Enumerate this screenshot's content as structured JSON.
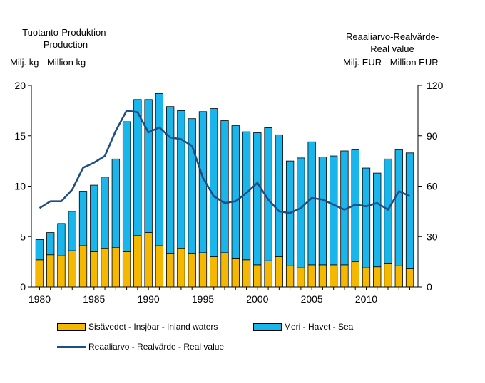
{
  "chart_data": {
    "type": "bar",
    "stacked": true,
    "left_title": [
      "Tuotanto-Produktion-",
      "Production"
    ],
    "left_unit": "Milj. kg  - Million kg",
    "right_title": [
      "Reaaliarvo-Realvärde-",
      "Real value"
    ],
    "right_unit": "Milj. EUR - Million EUR",
    "years": [
      1980,
      1981,
      1982,
      1983,
      1984,
      1985,
      1986,
      1987,
      1988,
      1989,
      1990,
      1991,
      1992,
      1993,
      1994,
      1995,
      1996,
      1997,
      1998,
      1999,
      2000,
      2001,
      2002,
      2003,
      2004,
      2005,
      2006,
      2007,
      2008,
      2009,
      2010,
      2011,
      2012,
      2013,
      2014
    ],
    "x_ticks": [
      "1980",
      "1985",
      "1990",
      "1995",
      "2000",
      "2005",
      "2010"
    ],
    "y_left_ticks": [
      "0",
      "5",
      "10",
      "15",
      "20"
    ],
    "y_left_range": [
      0,
      20
    ],
    "y_right_ticks": [
      "0",
      "30",
      "60",
      "90",
      "120"
    ],
    "y_right_range": [
      0,
      120
    ],
    "series": [
      {
        "name": "Sisävedet  - Insjöar - Inland waters",
        "color": "#f5b800",
        "axis": "left",
        "values": [
          2.7,
          3.2,
          3.1,
          3.6,
          4.1,
          3.5,
          3.8,
          3.9,
          3.5,
          5.1,
          5.4,
          4.1,
          3.3,
          3.8,
          3.3,
          3.4,
          3.0,
          3.4,
          2.8,
          2.7,
          2.2,
          2.6,
          3.0,
          2.1,
          1.9,
          2.2,
          2.2,
          2.2,
          2.2,
          2.5,
          1.9,
          2.0,
          2.3,
          2.1,
          1.8
        ]
      },
      {
        "name": "Meri  - Havet - Sea",
        "color": "#1ab5ea",
        "axis": "left",
        "values": [
          2.0,
          2.2,
          3.2,
          3.9,
          5.4,
          6.6,
          7.1,
          8.8,
          12.9,
          13.5,
          13.2,
          15.1,
          14.6,
          13.7,
          13.4,
          14.0,
          14.7,
          13.1,
          13.2,
          12.7,
          13.1,
          13.2,
          12.1,
          10.4,
          10.9,
          12.2,
          10.7,
          10.8,
          11.3,
          11.1,
          9.9,
          9.3,
          10.4,
          11.5,
          11.5
        ]
      },
      {
        "name": "Reaaliarvo - Realvärde - Real value",
        "color": "#1f4e85",
        "axis": "right",
        "type": "line",
        "values": [
          47,
          51,
          51,
          58,
          71,
          74,
          78,
          93,
          105,
          104,
          92,
          95,
          89,
          88,
          84,
          65,
          54,
          50,
          51,
          56,
          62,
          52,
          45,
          44,
          47,
          53,
          52,
          49,
          46,
          49,
          48,
          50,
          46,
          57,
          54
        ]
      }
    ]
  }
}
